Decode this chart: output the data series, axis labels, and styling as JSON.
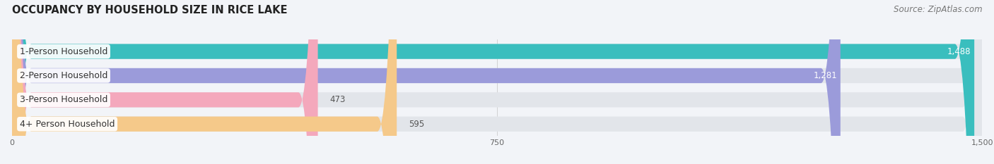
{
  "title": "OCCUPANCY BY HOUSEHOLD SIZE IN RICE LAKE",
  "source": "Source: ZipAtlas.com",
  "categories": [
    "1-Person Household",
    "2-Person Household",
    "3-Person Household",
    "4+ Person Household"
  ],
  "values": [
    1488,
    1281,
    473,
    595
  ],
  "bar_colors": [
    "#3abebe",
    "#9b9bda",
    "#f4a8bc",
    "#f5c98a"
  ],
  "xlim": [
    0,
    1500
  ],
  "xticks": [
    0,
    750,
    1500
  ],
  "background_color": "#f2f4f8",
  "bg_bar_color": "#e2e5ea",
  "title_fontsize": 10.5,
  "source_fontsize": 8.5,
  "label_fontsize": 9,
  "value_fontsize": 8.5,
  "bar_height": 0.62
}
